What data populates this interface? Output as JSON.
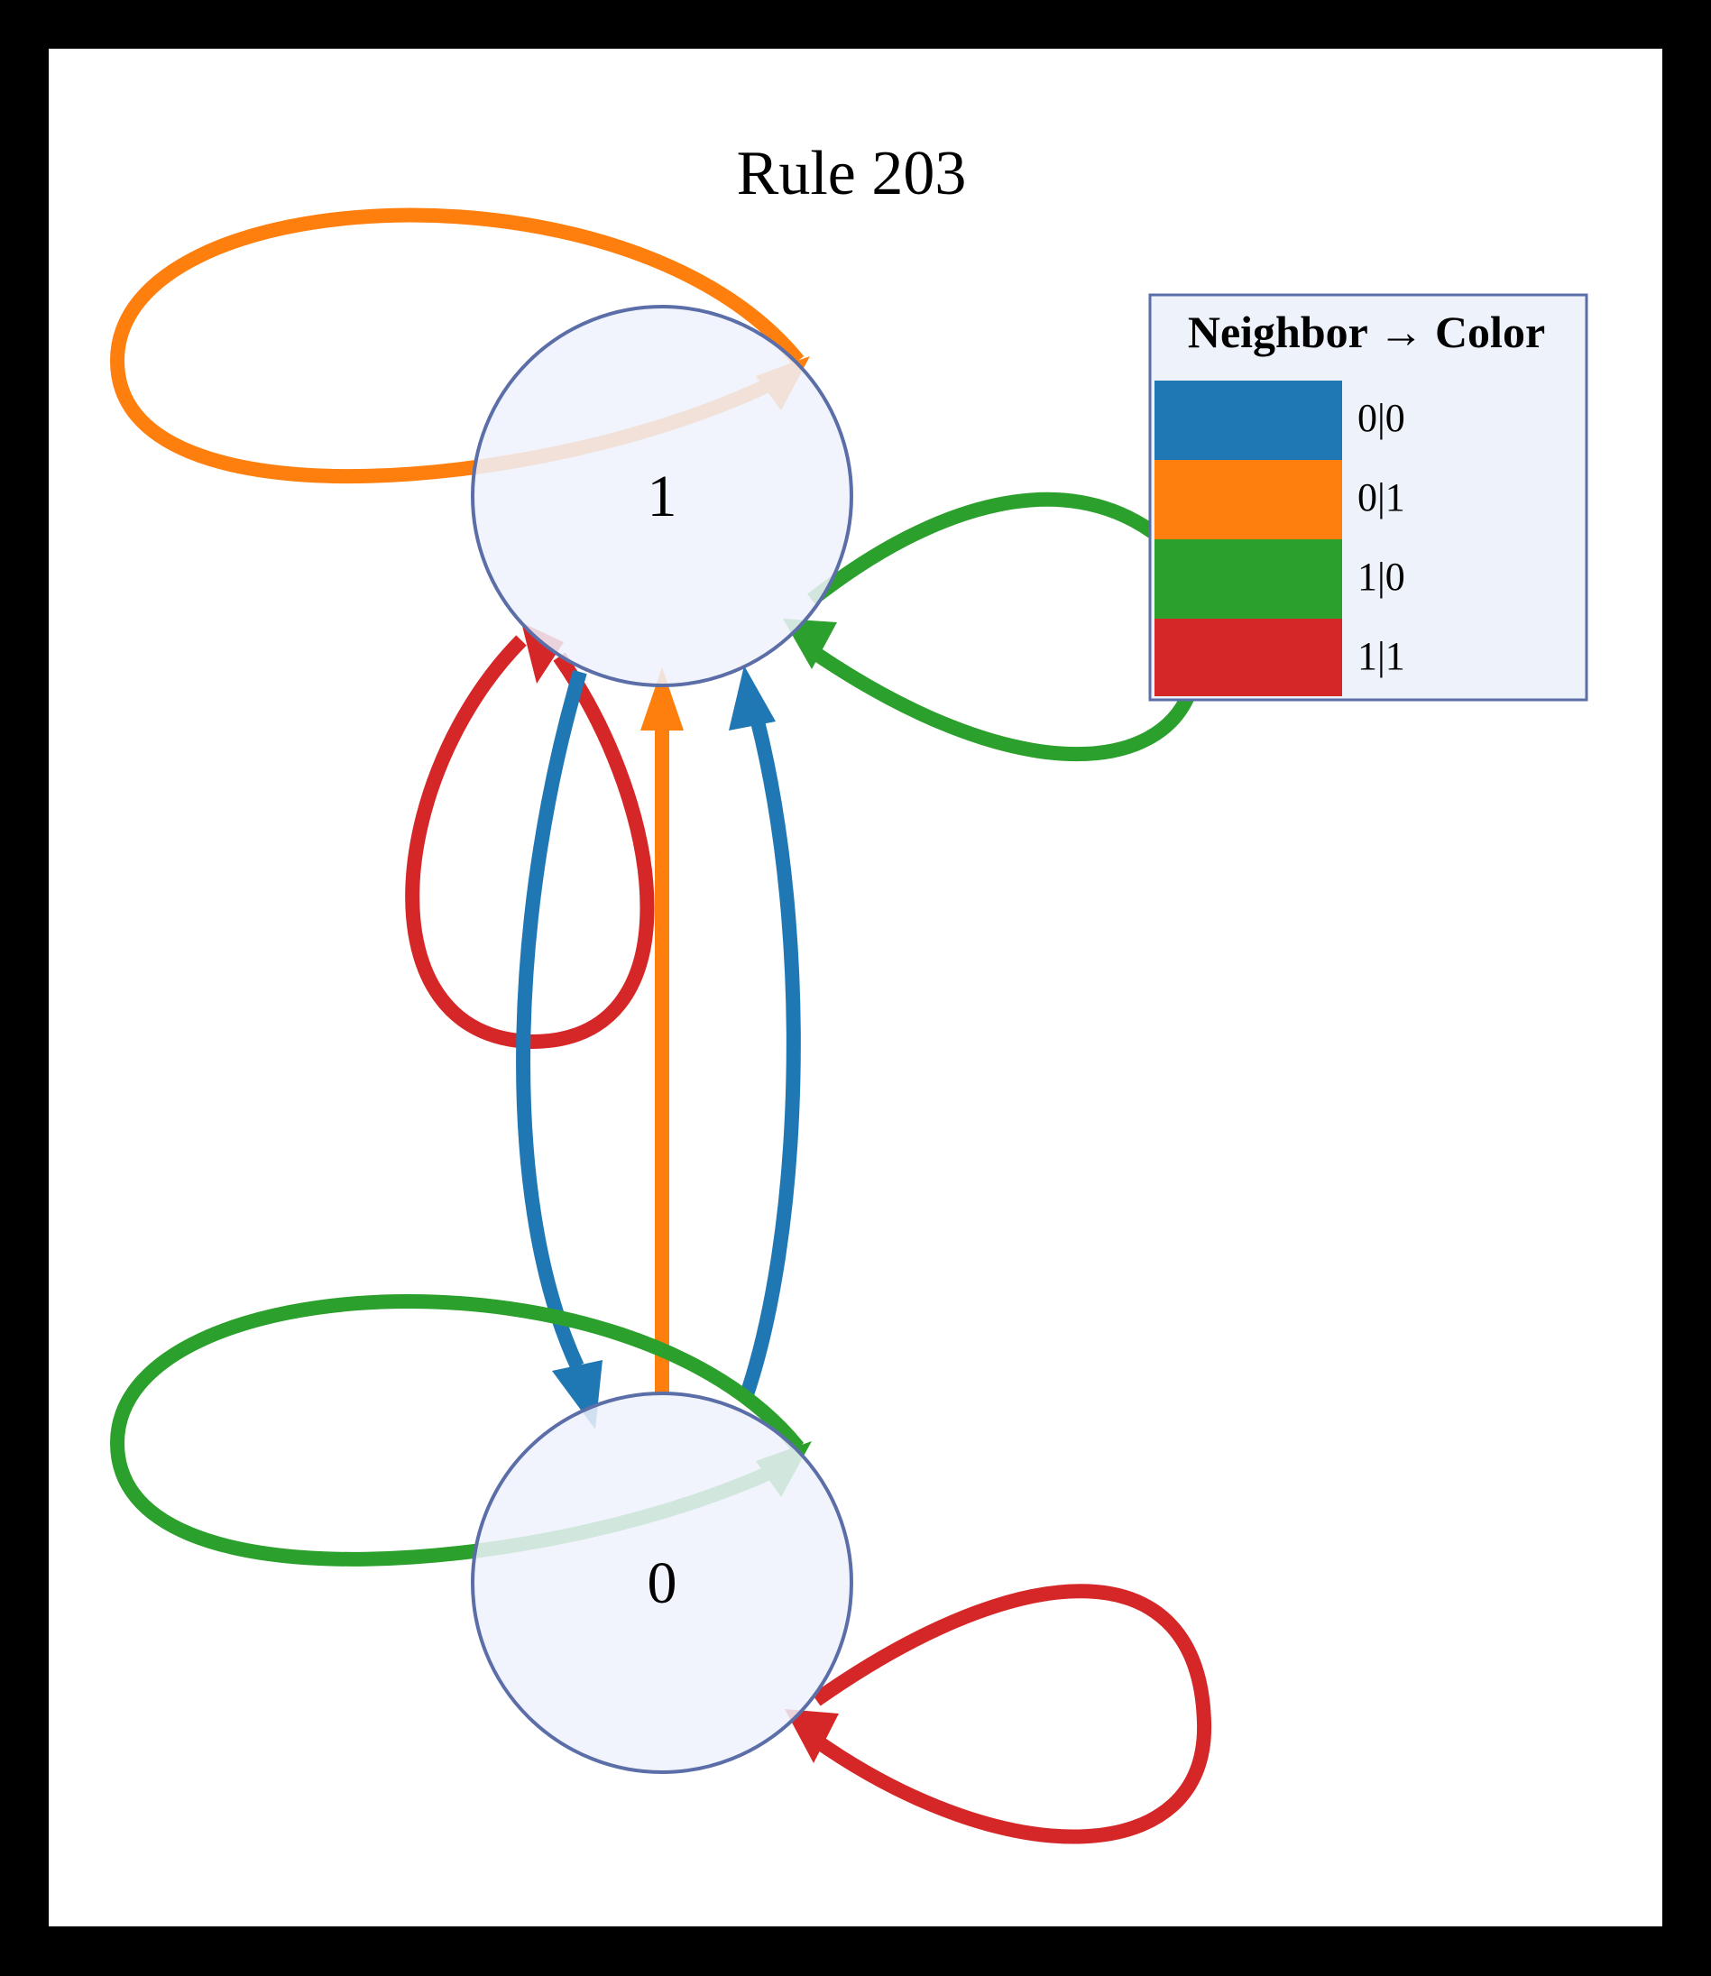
{
  "title": "Rule 203",
  "colors": {
    "frame": "#000000",
    "background": "#ffffff",
    "node_fill": "#eef2fb",
    "node_stroke": "#5b6ea8",
    "legend_fill": "#eef2fb",
    "legend_stroke": "#5b6ea8"
  },
  "nodes": [
    {
      "id": "1",
      "label": "1"
    },
    {
      "id": "0",
      "label": "0"
    }
  ],
  "legend": {
    "title": "Neighbor → Color",
    "entries": [
      {
        "label": "0|0",
        "color": "#1f77b4"
      },
      {
        "label": "0|1",
        "color": "#ff7f0e"
      },
      {
        "label": "1|0",
        "color": "#2ca02c"
      },
      {
        "label": "1|1",
        "color": "#d62728"
      }
    ]
  },
  "edges": [
    {
      "from": "1",
      "to": "1",
      "neighbor": "0|1",
      "color": "#ff7f0e"
    },
    {
      "from": "1",
      "to": "1",
      "neighbor": "1|0",
      "color": "#2ca02c"
    },
    {
      "from": "1",
      "to": "1",
      "neighbor": "1|1",
      "color": "#d62728"
    },
    {
      "from": "1",
      "to": "0",
      "neighbor": "0|0",
      "color": "#1f77b4"
    },
    {
      "from": "0",
      "to": "1",
      "neighbor": "0|1",
      "color": "#ff7f0e"
    },
    {
      "from": "0",
      "to": "1",
      "neighbor": "0|0",
      "color": "#1f77b4"
    },
    {
      "from": "0",
      "to": "0",
      "neighbor": "1|0",
      "color": "#2ca02c"
    },
    {
      "from": "0",
      "to": "0",
      "neighbor": "1|1",
      "color": "#d62728"
    }
  ]
}
